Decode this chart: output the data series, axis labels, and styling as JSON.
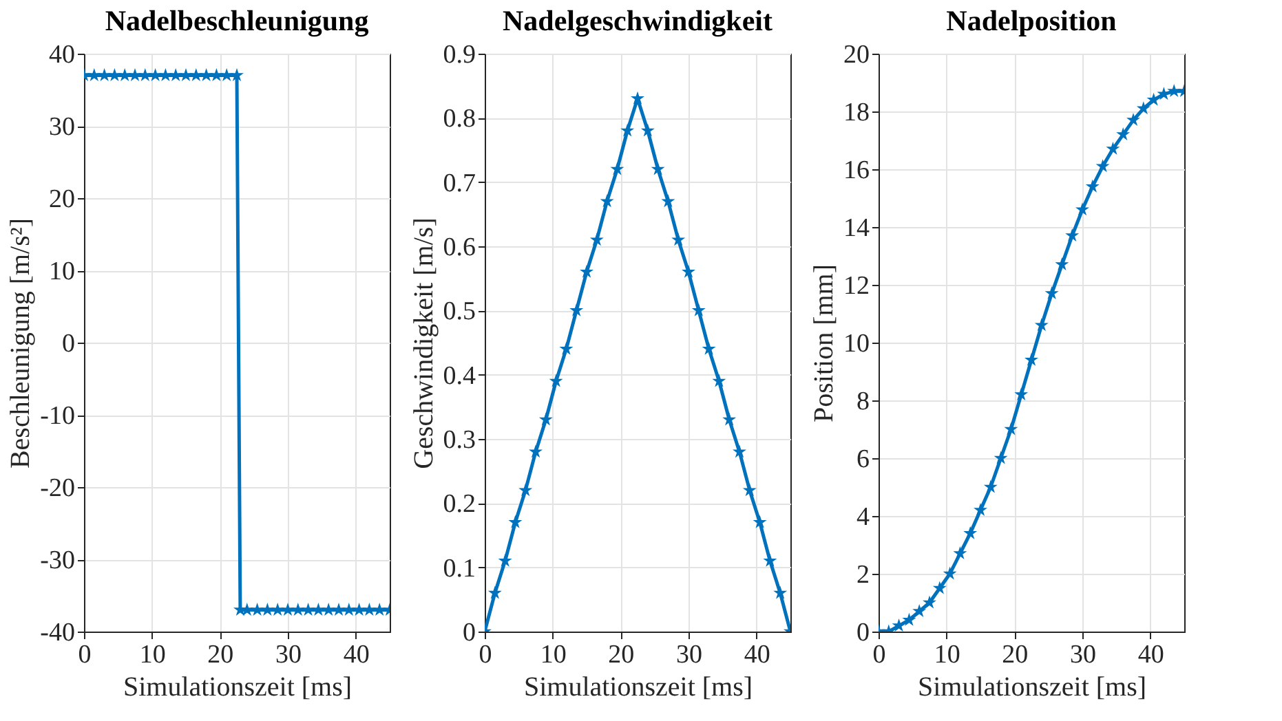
{
  "chart_data": [
    {
      "type": "line",
      "title": "Nadelbeschleunigung",
      "xlabel": "Simulationszeit [ms]",
      "ylabel": "Beschleunigung [m/s²]",
      "xlim": [
        0,
        45
      ],
      "xticks": [
        0,
        10,
        20,
        30,
        40
      ],
      "ylim": [
        -40,
        40
      ],
      "yticks": [
        -40,
        -30,
        -20,
        -10,
        0,
        10,
        20,
        30,
        40
      ],
      "grid": true,
      "marker": "star",
      "line_style": "solid",
      "series": [
        {
          "color": "#0072bd",
          "x": [
            0,
            1.5,
            3,
            4.5,
            6,
            7.5,
            9,
            10.5,
            12,
            13.5,
            15,
            16.5,
            18,
            19.5,
            21,
            22.5,
            23,
            24,
            25.5,
            27,
            28.5,
            30,
            31.5,
            33,
            34.5,
            36,
            37.5,
            39,
            40.5,
            42,
            43.5,
            45
          ],
          "values": [
            37,
            37,
            37,
            37,
            37,
            37,
            37,
            37,
            37,
            37,
            37,
            37,
            37,
            37,
            37,
            37,
            -37,
            -37,
            -37,
            -37,
            -37,
            -37,
            -37,
            -37,
            -37,
            -37,
            -37,
            -37,
            -37,
            -37,
            -37,
            -37
          ]
        }
      ]
    },
    {
      "type": "line",
      "title": "Nadelgeschwindigkeit",
      "xlabel": "Simulationszeit [ms]",
      "ylabel": "Geschwindigkeit [m/s]",
      "xlim": [
        0,
        45
      ],
      "xticks": [
        0,
        10,
        20,
        30,
        40
      ],
      "ylim": [
        0,
        0.9
      ],
      "yticks": [
        0,
        0.1,
        0.2,
        0.3,
        0.4,
        0.5,
        0.6,
        0.7,
        0.8,
        0.9
      ],
      "grid": true,
      "marker": "star",
      "line_style": "solid",
      "series": [
        {
          "color": "#0072bd",
          "x": [
            0,
            1.5,
            3,
            4.5,
            6,
            7.5,
            9,
            10.5,
            12,
            13.5,
            15,
            16.5,
            18,
            19.5,
            21,
            22.5,
            24,
            25.5,
            27,
            28.5,
            30,
            31.5,
            33,
            34.5,
            36,
            37.5,
            39,
            40.5,
            42,
            43.5,
            45
          ],
          "values": [
            0,
            0.06,
            0.11,
            0.17,
            0.22,
            0.28,
            0.33,
            0.39,
            0.44,
            0.5,
            0.56,
            0.61,
            0.67,
            0.72,
            0.78,
            0.83,
            0.78,
            0.72,
            0.67,
            0.61,
            0.56,
            0.5,
            0.44,
            0.39,
            0.33,
            0.28,
            0.22,
            0.17,
            0.11,
            0.06,
            0
          ]
        }
      ]
    },
    {
      "type": "line",
      "title": "Nadelposition",
      "xlabel": "Simulationszeit [ms]",
      "ylabel": "Position [mm]",
      "xlim": [
        0,
        45
      ],
      "xticks": [
        0,
        10,
        20,
        30,
        40
      ],
      "ylim": [
        0,
        20
      ],
      "yticks": [
        0,
        2,
        4,
        6,
        8,
        10,
        12,
        14,
        16,
        18,
        20
      ],
      "grid": true,
      "marker": "star",
      "line_style": "solid",
      "series": [
        {
          "color": "#0072bd",
          "x": [
            0,
            1.5,
            3,
            4.5,
            6,
            7.5,
            9,
            10.5,
            12,
            13.5,
            15,
            16.5,
            18,
            19.5,
            21,
            22.5,
            24,
            25.5,
            27,
            28.5,
            30,
            31.5,
            33,
            34.5,
            36,
            37.5,
            39,
            40.5,
            42,
            43.5,
            45
          ],
          "values": [
            0,
            0.0,
            0.2,
            0.4,
            0.7,
            1.0,
            1.5,
            2.0,
            2.7,
            3.4,
            4.2,
            5.0,
            6.0,
            7.0,
            8.2,
            9.4,
            10.6,
            11.7,
            12.7,
            13.7,
            14.6,
            15.4,
            16.1,
            16.7,
            17.2,
            17.7,
            18.1,
            18.4,
            18.6,
            18.7,
            18.7
          ]
        }
      ]
    }
  ]
}
